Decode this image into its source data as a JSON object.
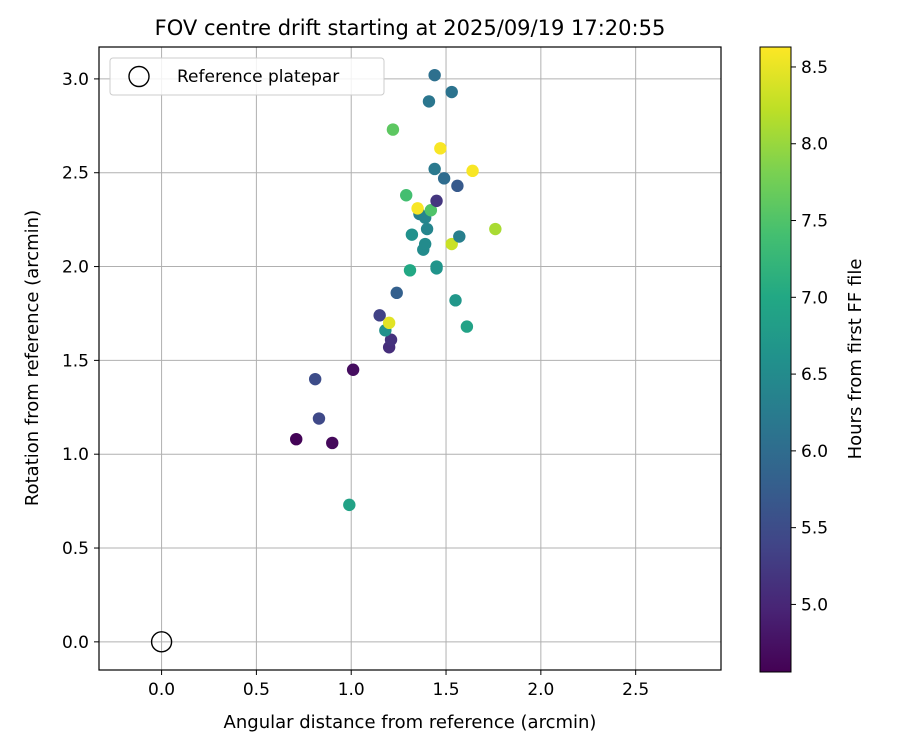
{
  "chart_data": {
    "type": "scatter",
    "title": "FOV centre drift starting at 2025/09/19 17:20:55",
    "xlabel": "Angular distance from reference (arcmin)",
    "ylabel": "Rotation from reference (arcmin)",
    "xlim": [
      -0.33,
      2.95
    ],
    "ylim": [
      -0.15,
      3.17
    ],
    "xticks": [
      0.0,
      0.5,
      1.0,
      1.5,
      2.0,
      2.5
    ],
    "yticks": [
      0.0,
      0.5,
      1.0,
      1.5,
      2.0,
      2.5,
      3.0
    ],
    "grid": true,
    "legend": {
      "position": "top-left",
      "entries": [
        {
          "label": "Reference platepar",
          "marker": "open-circle"
        }
      ]
    },
    "reference_point": {
      "x": 0.0,
      "y": 0.0
    },
    "colorbar": {
      "label": "Hours from first FF file",
      "colormap": "viridis",
      "range": [
        4.56,
        8.63
      ],
      "ticks": [
        5.0,
        5.5,
        6.0,
        6.5,
        7.0,
        7.5,
        8.0,
        8.5
      ]
    },
    "points": [
      {
        "x": 0.71,
        "y": 1.08,
        "c": 4.6
      },
      {
        "x": 0.9,
        "y": 1.06,
        "c": 4.65
      },
      {
        "x": 1.01,
        "y": 1.45,
        "c": 4.7
      },
      {
        "x": 0.81,
        "y": 1.4,
        "c": 5.5
      },
      {
        "x": 0.83,
        "y": 1.19,
        "c": 5.45
      },
      {
        "x": 1.2,
        "y": 1.57,
        "c": 5.1
      },
      {
        "x": 1.21,
        "y": 1.61,
        "c": 5.15
      },
      {
        "x": 1.15,
        "y": 1.74,
        "c": 5.35
      },
      {
        "x": 1.18,
        "y": 1.66,
        "c": 6.6
      },
      {
        "x": 0.99,
        "y": 0.73,
        "c": 6.9
      },
      {
        "x": 1.24,
        "y": 1.86,
        "c": 5.8
      },
      {
        "x": 1.31,
        "y": 1.98,
        "c": 7.0
      },
      {
        "x": 1.32,
        "y": 2.17,
        "c": 6.6
      },
      {
        "x": 1.38,
        "y": 2.09,
        "c": 6.5
      },
      {
        "x": 1.39,
        "y": 2.12,
        "c": 6.5
      },
      {
        "x": 1.4,
        "y": 2.2,
        "c": 6.4
      },
      {
        "x": 1.36,
        "y": 2.28,
        "c": 6.3
      },
      {
        "x": 1.39,
        "y": 2.26,
        "c": 6.4
      },
      {
        "x": 1.42,
        "y": 2.3,
        "c": 7.5
      },
      {
        "x": 1.35,
        "y": 2.31,
        "c": 8.6
      },
      {
        "x": 1.29,
        "y": 2.38,
        "c": 7.4
      },
      {
        "x": 1.45,
        "y": 2.35,
        "c": 5.2
      },
      {
        "x": 1.45,
        "y": 2.0,
        "c": 6.7
      },
      {
        "x": 1.45,
        "y": 1.99,
        "c": 6.65
      },
      {
        "x": 1.53,
        "y": 2.12,
        "c": 8.3
      },
      {
        "x": 1.57,
        "y": 2.16,
        "c": 6.3
      },
      {
        "x": 1.55,
        "y": 1.82,
        "c": 6.7
      },
      {
        "x": 1.61,
        "y": 1.68,
        "c": 6.9
      },
      {
        "x": 1.2,
        "y": 1.7,
        "c": 8.45
      },
      {
        "x": 1.76,
        "y": 2.2,
        "c": 8.1
      },
      {
        "x": 1.44,
        "y": 2.52,
        "c": 6.2
      },
      {
        "x": 1.49,
        "y": 2.47,
        "c": 6.0
      },
      {
        "x": 1.56,
        "y": 2.43,
        "c": 5.7
      },
      {
        "x": 1.64,
        "y": 2.51,
        "c": 8.6
      },
      {
        "x": 1.47,
        "y": 2.63,
        "c": 8.6
      },
      {
        "x": 1.22,
        "y": 2.73,
        "c": 7.6
      },
      {
        "x": 1.41,
        "y": 2.88,
        "c": 6.15
      },
      {
        "x": 1.53,
        "y": 2.93,
        "c": 6.1
      },
      {
        "x": 1.44,
        "y": 3.02,
        "c": 6.05
      }
    ]
  }
}
